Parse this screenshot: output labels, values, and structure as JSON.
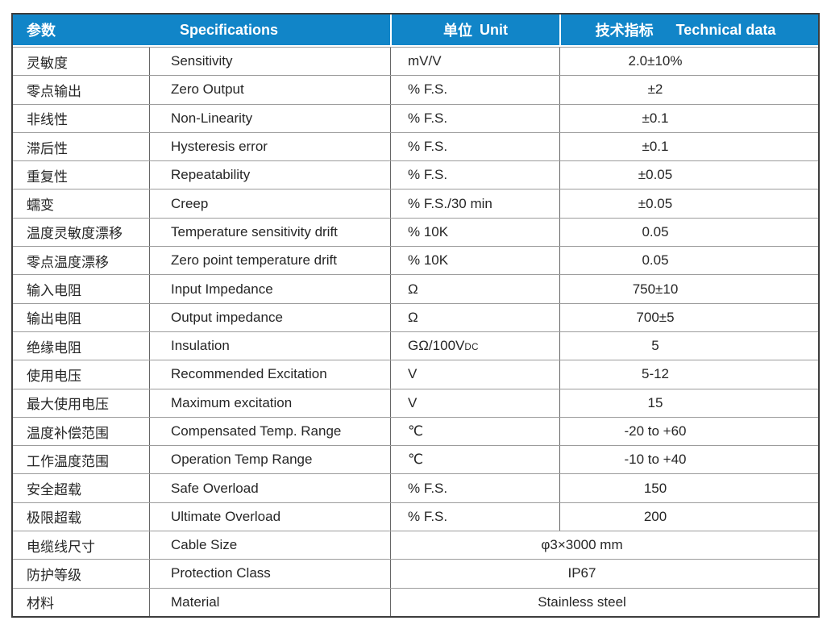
{
  "table": {
    "header": {
      "param_zh": "参数",
      "param_en": "",
      "spec_zh": "",
      "spec_en": "Specifications",
      "unit_zh": "单位",
      "unit_en": "Unit",
      "tech_zh": "技术指标",
      "tech_en": "Technical data"
    },
    "rows": [
      {
        "param": "灵敏度",
        "spec": "Sensitivity",
        "unit": "mV/V",
        "value": "2.0±10%"
      },
      {
        "param": "零点输出",
        "spec": "Zero Output",
        "unit": "% F.S.",
        "value": "±2"
      },
      {
        "param": "非线性",
        "spec": "Non-Linearity",
        "unit": "% F.S.",
        "value": "±0.1"
      },
      {
        "param": "滞后性",
        "spec": "Hysteresis error",
        "unit": "% F.S.",
        "value": "±0.1"
      },
      {
        "param": "重复性",
        "spec": "Repeatability",
        "unit": "% F.S.",
        "value": "±0.05"
      },
      {
        "param": "蠕变",
        "spec": "Creep",
        "unit": "% F.S./30 min",
        "value": "±0.05"
      },
      {
        "param": "温度灵敏度漂移",
        "spec": "Temperature sensitivity drift",
        "unit": "% 10K",
        "value": "0.05"
      },
      {
        "param": "零点温度漂移",
        "spec": "Zero point temperature drift",
        "unit": "% 10K",
        "value": "0.05"
      },
      {
        "param": "输入电阻",
        "spec": "Input Impedance",
        "unit": "Ω",
        "value": "750±10"
      },
      {
        "param": "输出电阻",
        "spec": "Output impedance",
        "unit": "Ω",
        "value": "700±5"
      },
      {
        "param": "绝缘电阻",
        "spec": "Insulation",
        "unit": "GΩ/100V",
        "unit_small": "DC",
        "value": "5"
      },
      {
        "param": "使用电压",
        "spec": "Recommended Excitation",
        "unit": "V",
        "value": "5-12"
      },
      {
        "param": "最大使用电压",
        "spec": "Maximum excitation",
        "unit": "V",
        "value": "15"
      },
      {
        "param": "温度补偿范围",
        "spec": "Compensated Temp. Range",
        "unit": "℃",
        "value": "-20 to +60"
      },
      {
        "param": "工作温度范围",
        "spec": "Operation Temp Range",
        "unit": "℃",
        "value": "-10 to +40"
      },
      {
        "param": "安全超载",
        "spec": "Safe Overload",
        "unit": "% F.S.",
        "value": "150"
      },
      {
        "param": "极限超载",
        "spec": "Ultimate Overload",
        "unit": "% F.S.",
        "value": "200"
      },
      {
        "param": "电缆线尺寸",
        "spec": "Cable Size",
        "merged": true,
        "value": "φ3×3000 mm"
      },
      {
        "param": "防护等级",
        "spec": "Protection Class",
        "merged": true,
        "value": "IP67"
      },
      {
        "param": "材料",
        "spec": "Material",
        "merged": true,
        "value": "Stainless steel"
      }
    ],
    "colors": {
      "header_bg": "#1185c8",
      "header_text": "#ffffff",
      "body_text": "#262626",
      "grid_h": "#9c9c9c",
      "grid_v": "#666666",
      "outer_border": "#3d3d3d"
    }
  }
}
